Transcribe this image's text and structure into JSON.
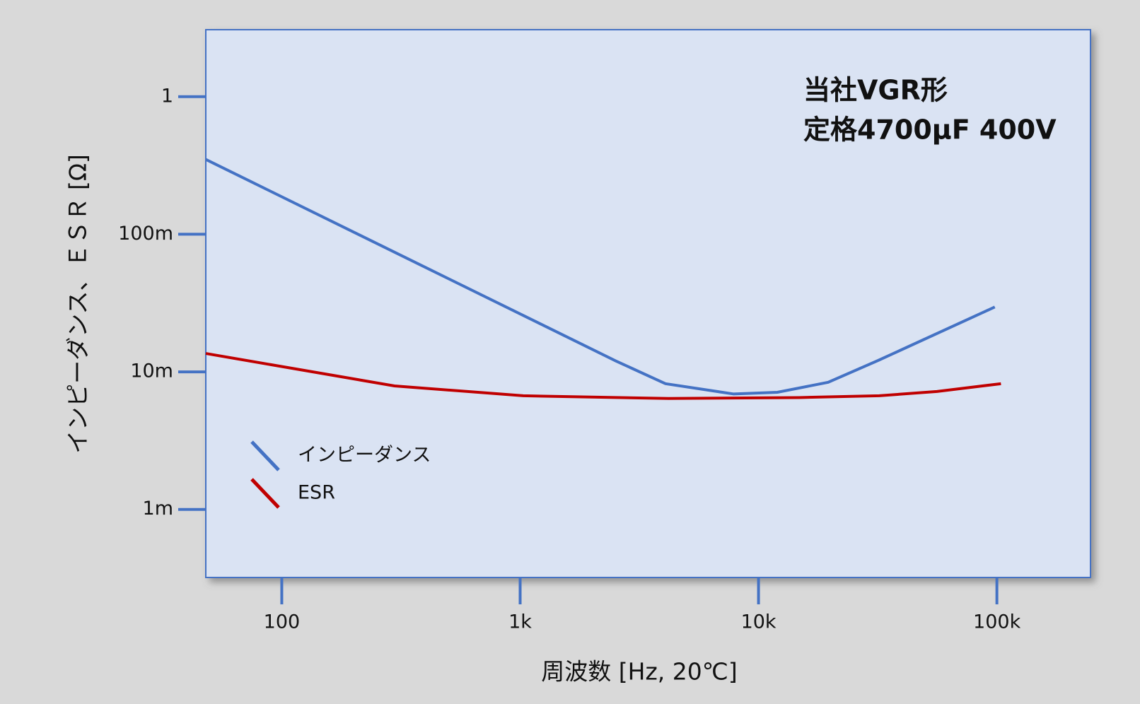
{
  "chart_data": {
    "type": "line",
    "x_label": "周波数 [Hz, 20℃]",
    "y_label": "インピーダンス、ＥＳＲ [Ω]",
    "annotations": [
      "当社VGR形",
      "定格4700µF 400V"
    ],
    "xscale": "log",
    "yscale": "log",
    "xlim": [
      48,
      247000
    ],
    "ylim": [
      0.00032,
      3.07
    ],
    "xticks": [
      100,
      {
        "value": 1000,
        "label": "1k"
      },
      {
        "value": 10000,
        "label": "10k"
      },
      {
        "value": 100000,
        "label": "100k"
      }
    ],
    "yticks": [
      {
        "value": 0.001,
        "label": "1m"
      },
      {
        "value": 0.01,
        "label": "10m"
      },
      {
        "value": 0.1,
        "label": "100m"
      },
      1
    ],
    "legend": "lower left",
    "series": [
      {
        "name": "インピーダンス",
        "color": "#4472c4",
        "x": [
          48,
          2520,
          4070,
          7870,
          12000,
          19600,
          32100,
          98000
        ],
        "values": [
          0.35,
          0.012,
          0.0082,
          0.0069,
          0.0071,
          0.0084,
          0.0122,
          0.0296
        ]
      },
      {
        "name": "ESR",
        "color": "#c00000",
        "x": [
          48,
          297,
          1030,
          4190,
          14800,
          32100,
          56000,
          104000
        ],
        "values": [
          0.0136,
          0.0079,
          0.0067,
          0.0064,
          0.0065,
          0.0067,
          0.0072,
          0.0082
        ]
      }
    ]
  }
}
